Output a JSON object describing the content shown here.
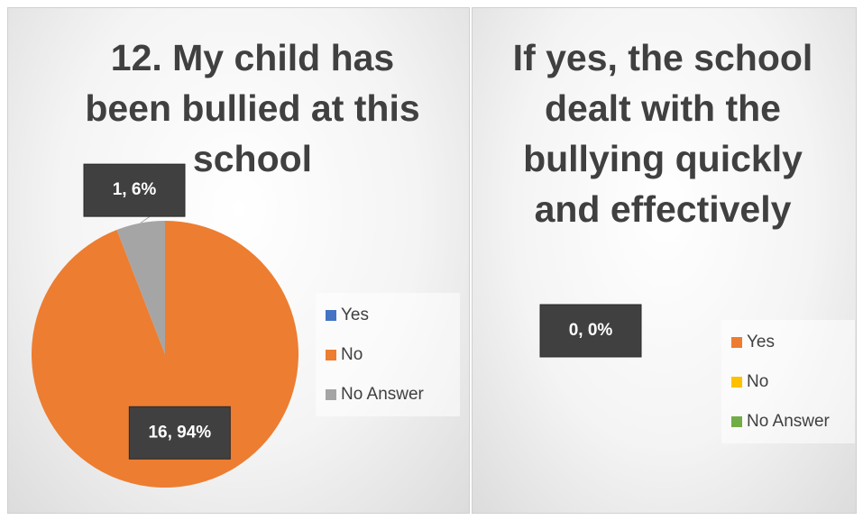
{
  "chart_data": [
    {
      "type": "pie",
      "title": "12. My child has been bullied at this school",
      "categories": [
        "Yes",
        "No",
        "No Answer"
      ],
      "values": [
        0,
        16,
        1
      ],
      "value_labels": [
        null,
        "16, 94%",
        "1, 6%"
      ],
      "colors": [
        "#4472c4",
        "#ed7d31",
        "#a5a5a5"
      ],
      "legend": "right"
    },
    {
      "type": "pie",
      "title": "If yes, the school dealt with the bullying quickly and effectively",
      "categories": [
        "Yes",
        "No",
        "No Answer"
      ],
      "values": [
        0,
        0,
        0
      ],
      "value_labels": [
        "0, 0%",
        null,
        null
      ],
      "colors": [
        "#ed7d31",
        "#ffc000",
        "#70ad47"
      ],
      "legend": "right"
    }
  ]
}
